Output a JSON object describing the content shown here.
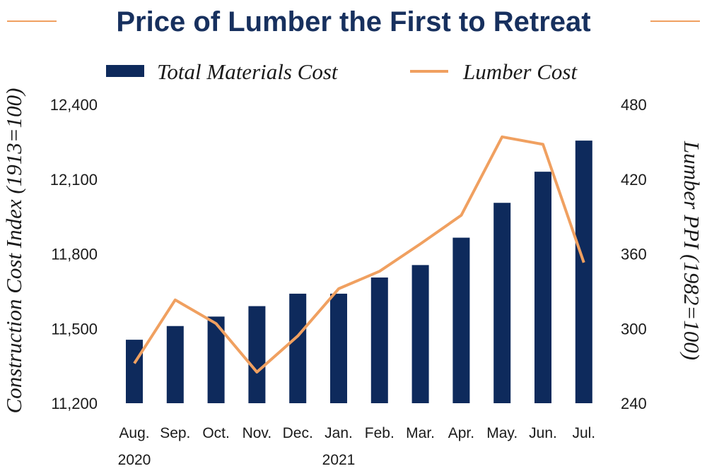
{
  "chart_data": {
    "type": "bar",
    "title": "Price of Lumber the First to Retreat",
    "categories": [
      "Aug.",
      "Sep.",
      "Oct.",
      "Nov.",
      "Dec.",
      "Jan.",
      "Feb.",
      "Mar.",
      "Apr.",
      "May.",
      "Jun.",
      "Jul."
    ],
    "year_labels": [
      {
        "category_index": 0,
        "text": "2020"
      },
      {
        "category_index": 5,
        "text": "2021"
      }
    ],
    "series": [
      {
        "name": "Total Materials Cost",
        "type": "bar",
        "axis": "left",
        "values": [
          11455,
          11510,
          11548,
          11590,
          11640,
          11640,
          11705,
          11755,
          11865,
          12005,
          12130,
          12255
        ]
      },
      {
        "name": "Lumber Cost",
        "type": "line",
        "axis": "right",
        "values": [
          272,
          323,
          304,
          265,
          294,
          332,
          346,
          368,
          391,
          454,
          448,
          353
        ]
      }
    ],
    "ylabel_left": "Construction Cost Index (1913=100)",
    "ylabel_right": "Lumber PPI (1982=100)",
    "ylim_left": [
      11200,
      12400
    ],
    "yticks_left": [
      "12,400",
      "12,100",
      "11,800",
      "11,500",
      "11,200"
    ],
    "ylim_right": [
      240,
      480
    ],
    "yticks_right": [
      "480",
      "420",
      "360",
      "300",
      "240"
    ],
    "grid": false,
    "legend_position": "top",
    "colors": {
      "bars": "#0e2a5c",
      "line": "#f0a060",
      "title": "#17305e",
      "title_rules": "#f0a060"
    }
  }
}
